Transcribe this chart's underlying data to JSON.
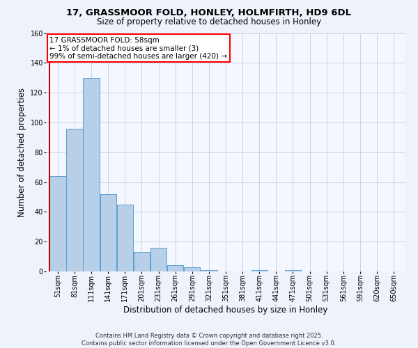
{
  "title_line1": "17, GRASSMOOR FOLD, HONLEY, HOLMFIRTH, HD9 6DL",
  "title_line2": "Size of property relative to detached houses in Honley",
  "xlabel": "Distribution of detached houses by size in Honley",
  "ylabel": "Number of detached properties",
  "categories": [
    "51sqm",
    "81sqm",
    "111sqm",
    "141sqm",
    "171sqm",
    "201sqm",
    "231sqm",
    "261sqm",
    "291sqm",
    "321sqm",
    "351sqm",
    "381sqm",
    "411sqm",
    "441sqm",
    "471sqm",
    "501sqm",
    "531sqm",
    "561sqm",
    "591sqm",
    "620sqm",
    "650sqm"
  ],
  "values": [
    64,
    96,
    130,
    52,
    45,
    13,
    16,
    4,
    3,
    1,
    0,
    0,
    1,
    0,
    1,
    0,
    0,
    0,
    0,
    0,
    0
  ],
  "bar_color": "#b8cfe8",
  "bar_edge_color": "#5a9fd4",
  "ylim": [
    0,
    160
  ],
  "yticks": [
    0,
    20,
    40,
    60,
    80,
    100,
    120,
    140,
    160
  ],
  "annotation_line1": "17 GRASSMOOR FOLD: 58sqm",
  "annotation_line2": "← 1% of detached houses are smaller (3)",
  "annotation_line3": "99% of semi-detached houses are larger (420) →",
  "footnote_line1": "Contains HM Land Registry data © Crown copyright and database right 2025.",
  "footnote_line2": "Contains public sector information licensed under the Open Government Licence v3.0.",
  "bg_color": "#eef2fb",
  "plot_bg_color": "#f5f7fe",
  "grid_color": "#c5cde8",
  "red_line_color": "#cc0000",
  "title1_fontsize": 9.5,
  "title2_fontsize": 8.5,
  "xlabel_fontsize": 8.5,
  "ylabel_fontsize": 8.5,
  "tick_fontsize": 7,
  "annot_fontsize": 7.5,
  "footnote_fontsize": 6
}
